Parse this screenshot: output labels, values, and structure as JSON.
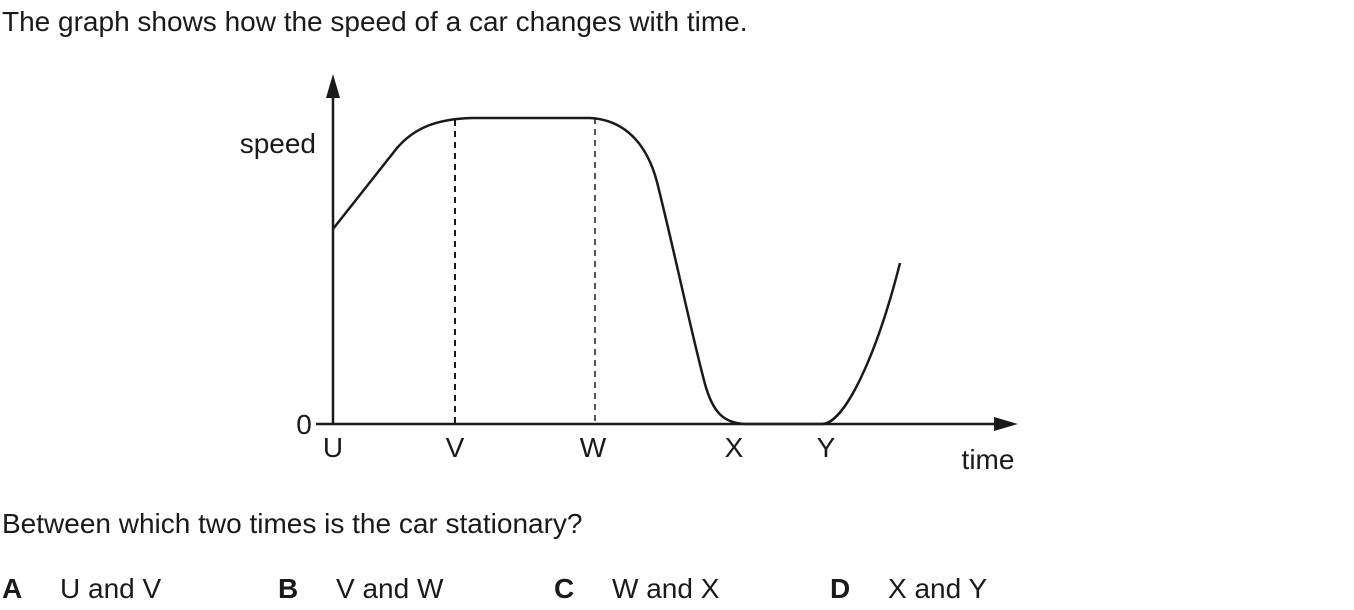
{
  "question": {
    "intro": "The graph shows how the speed of a car changes with time.",
    "prompt": "Between which two times is the car stationary?"
  },
  "options": [
    {
      "letter": "A",
      "text": "U and V"
    },
    {
      "letter": "B",
      "text": "V and W"
    },
    {
      "letter": "C",
      "text": "W and X"
    },
    {
      "letter": "D",
      "text": "X and Y"
    }
  ],
  "graph": {
    "y_axis_label": "speed",
    "x_axis_label": "time",
    "origin_label": "0",
    "time_labels": [
      "U",
      "V",
      "W",
      "X",
      "Y"
    ]
  }
}
